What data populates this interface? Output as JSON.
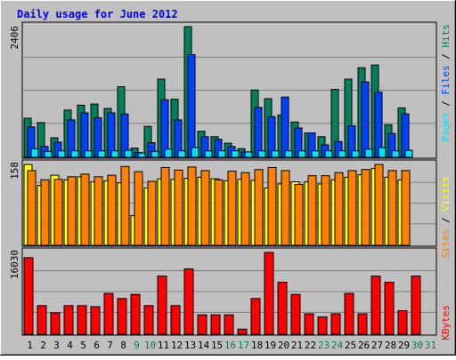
{
  "chart_data": {
    "type": "bar",
    "title": "Daily usage for June 2012",
    "categories": [
      "1",
      "2",
      "3",
      "4",
      "5",
      "6",
      "7",
      "8",
      "9",
      "10",
      "11",
      "12",
      "13",
      "14",
      "15",
      "16",
      "17",
      "18",
      "19",
      "20",
      "21",
      "22",
      "23",
      "24",
      "25",
      "26",
      "27",
      "28",
      "29",
      "30",
      "31"
    ],
    "weekend_days": [
      "9",
      "10",
      "16",
      "17",
      "23",
      "24",
      "30",
      "31"
    ],
    "panels": [
      {
        "id": "hits-files-pages",
        "ymax": 2406,
        "ymax_label": "2406",
        "series": [
          {
            "name": "Hits",
            "color": "#00805c",
            "values": [
              720,
              640,
              360,
              870,
              960,
              980,
              900,
              1300,
              170,
              570,
              1440,
              1070,
              2406,
              480,
              380,
              260,
              160,
              1240,
              1080,
              780,
              650,
              450,
              380,
              1250,
              1440,
              1650,
              1700,
              600,
              910,
              0,
              0
            ]
          },
          {
            "name": "Files",
            "color": "#0040ff",
            "values": [
              560,
              200,
              280,
              690,
              820,
              730,
              820,
              800,
              90,
              270,
              1060,
              690,
              1890,
              380,
              330,
              200,
              100,
              920,
              750,
              1110,
              540,
              450,
              230,
              290,
              580,
              1390,
              1200,
              440,
              800,
              0,
              0
            ]
          },
          {
            "name": "Pages",
            "color": "#00e0ff",
            "values": [
              160,
              110,
              120,
              120,
              120,
              120,
              120,
              130,
              80,
              110,
              150,
              120,
              180,
              120,
              120,
              120,
              100,
              120,
              120,
              120,
              120,
              120,
              120,
              120,
              120,
              150,
              180,
              120,
              130,
              0,
              0
            ]
          }
        ]
      },
      {
        "id": "visits-sites",
        "ymax": 158,
        "ymax_label": "158",
        "series": [
          {
            "name": "Visits",
            "color": "#ffff00",
            "values": [
              158,
              117,
              137,
              128,
              134,
              124,
              126,
              122,
              58,
              112,
              130,
              129,
              131,
              133,
              130,
              126,
              129,
              127,
              112,
              120,
              124,
              124,
              120,
              128,
              133,
              138,
              150,
              133,
              128,
              0,
              0
            ]
          },
          {
            "name": "Sites",
            "color": "#ff8000",
            "values": [
              146,
              128,
              129,
              134,
              139,
              134,
              137,
              154,
              144,
              125,
              152,
              147,
              153,
              146,
              128,
              145,
              142,
              148,
              152,
              146,
              119,
              136,
              136,
              142,
              146,
              148,
              158,
              146,
              146,
              0,
              0
            ]
          }
        ]
      },
      {
        "id": "kbytes",
        "ymax": 16030,
        "ymax_label": "16030",
        "series": [
          {
            "name": "KBytes",
            "color": "#ff0000",
            "values": [
              15000,
              5600,
              4200,
              5600,
              5600,
              5400,
              8000,
              7000,
              7800,
              5600,
              11400,
              5600,
              12800,
              3800,
              3800,
              3800,
              1000,
              7000,
              16030,
              10200,
              7800,
              4000,
              3400,
              4000,
              8000,
              4000,
              11400,
              10200,
              4600,
              11400,
              0
            ]
          }
        ]
      }
    ],
    "right_labels": [
      [
        {
          "text": "Pages",
          "color": "#00e0ff"
        },
        {
          "text": " / ",
          "color": "#000000"
        },
        {
          "text": "Files",
          "color": "#0040ff"
        },
        {
          "text": " / ",
          "color": "#000000"
        },
        {
          "text": "Hits",
          "color": "#00805c"
        }
      ],
      [
        {
          "text": "Sites",
          "color": "#ff8000"
        },
        {
          "text": " / ",
          "color": "#000000"
        },
        {
          "text": "Visits",
          "color": "#ffff00"
        }
      ],
      [
        {
          "text": "KBytes",
          "color": "#ff0000"
        }
      ]
    ],
    "colors": {
      "background": "#c0c0c0",
      "plot": "#c0c0c0",
      "gridline": "#808080",
      "title": "#0000ff",
      "weekday_label": "#000000",
      "weekend_label": "#00805c"
    }
  }
}
